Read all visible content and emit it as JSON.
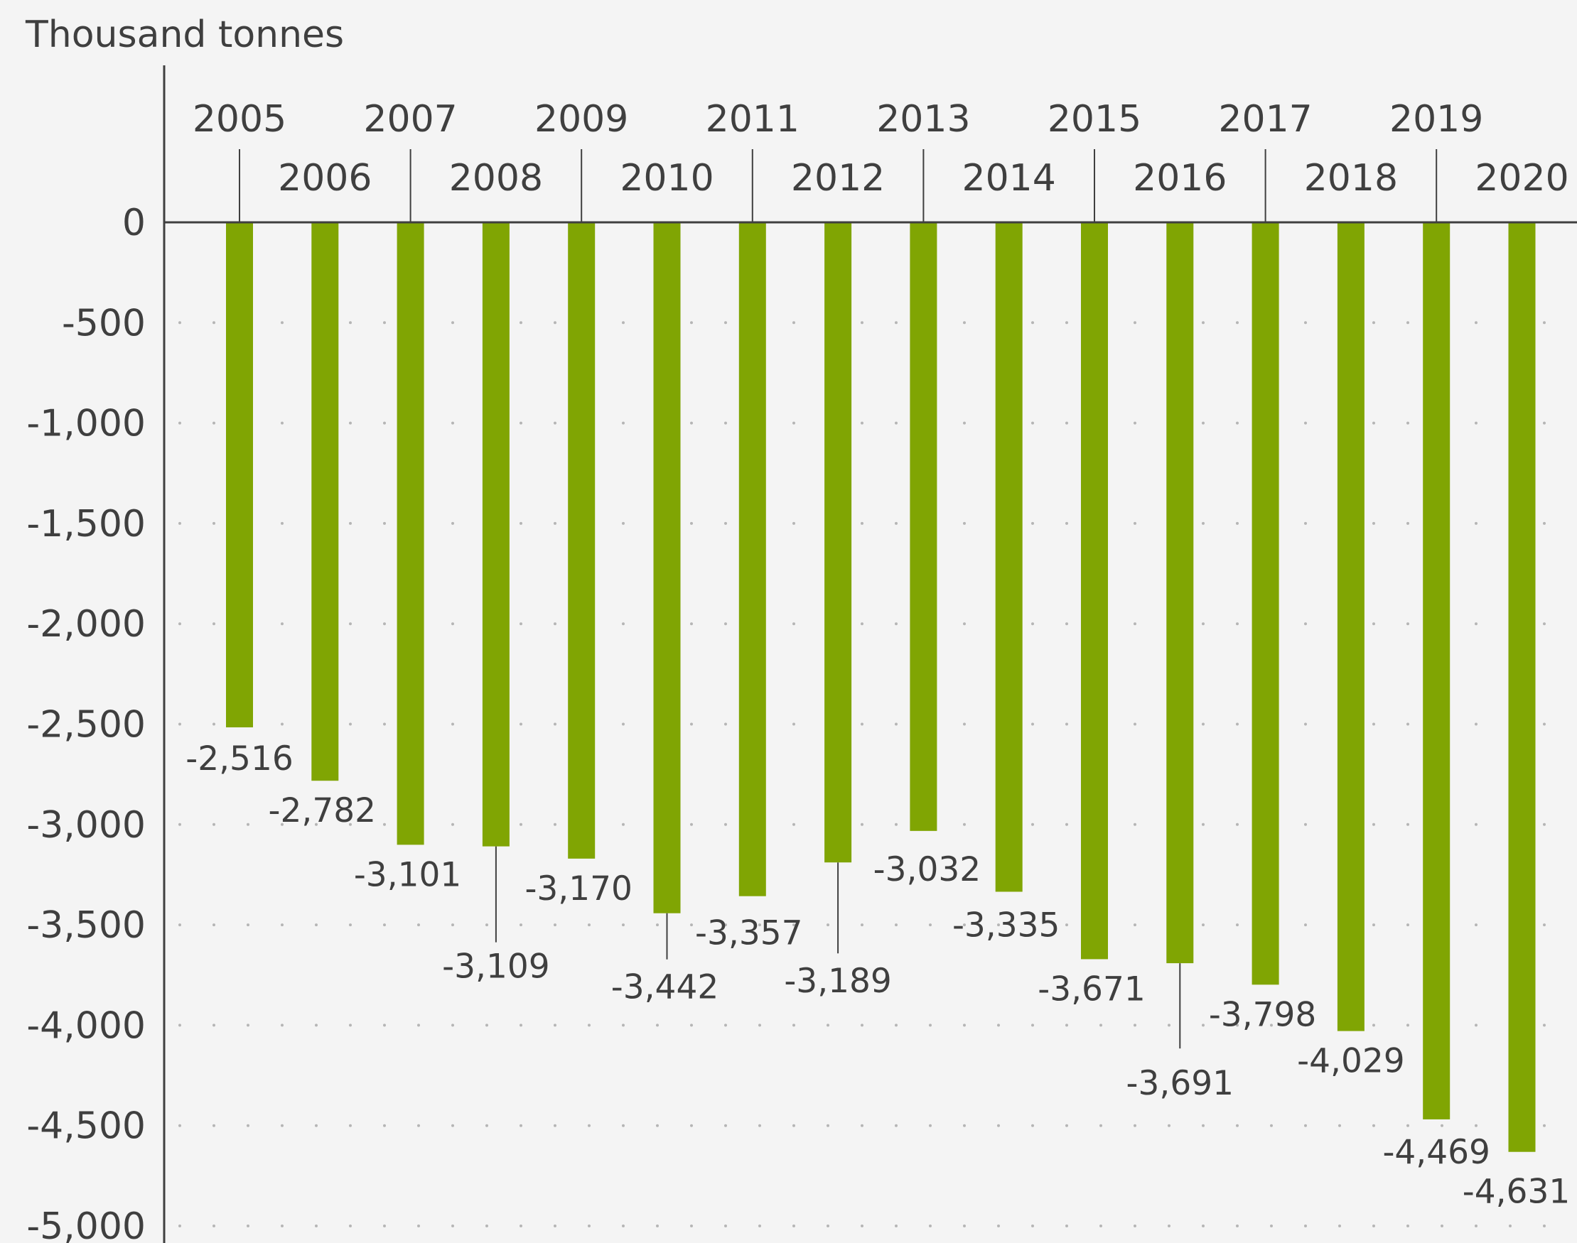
{
  "chart_data": {
    "type": "bar",
    "ylabel": "Thousand tonnes",
    "categories": [
      "2005",
      "2006",
      "2007",
      "2008",
      "2009",
      "2010",
      "2011",
      "2012",
      "2013",
      "2014",
      "2015",
      "2016",
      "2017",
      "2018",
      "2019",
      "2020"
    ],
    "values": [
      -2516,
      -2782,
      -3101,
      -3109,
      -3170,
      -3442,
      -3357,
      -3189,
      -3032,
      -3335,
      -3671,
      -3691,
      -3798,
      -4029,
      -4469,
      -4631
    ],
    "value_labels": [
      "-2,516",
      "-2,782",
      "-3,101",
      "-3,109",
      "-3,170",
      "-3,442",
      "-3,357",
      "-3,189",
      "-3,032",
      "-3,335",
      "-3,671",
      "-3,691",
      "-3,798",
      "-4,029",
      "-4,469",
      "-4,631"
    ],
    "yticks": [
      0,
      -500,
      -1000,
      -1500,
      -2000,
      -2500,
      -3000,
      -3500,
      -4000,
      -4500,
      -5000
    ],
    "ytick_labels": [
      "0",
      "-500",
      "-1,000",
      "-1,500",
      "-2,000",
      "-2,500",
      "-3,000",
      "-3,500",
      "-4,000",
      "-4,500",
      "-5,000"
    ],
    "ylim": [
      -5000,
      0
    ],
    "grid": "dotted horizontal",
    "category_axis_position": "top",
    "bar_color": "#80a503"
  }
}
